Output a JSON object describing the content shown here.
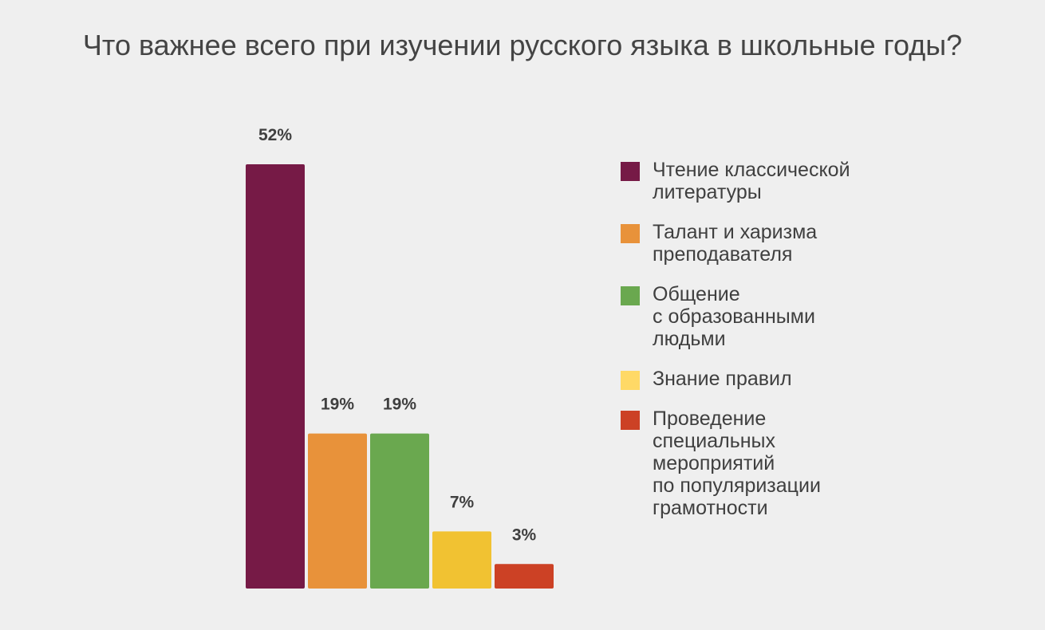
{
  "chart_data": {
    "type": "bar",
    "title": "Что важнее всего при изучении русского языка в школьные годы?",
    "categories": [
      "Чтение классической\nлитературы",
      "Талант и харизма\nпреподавателя",
      "Общение\nс образованными\nлюдьми",
      "Знание правил",
      "Проведение\nспециальных\nмероприятий\nпо популяризации\nграмотности"
    ],
    "values": [
      52,
      19,
      19,
      7,
      3
    ],
    "labels": [
      "52%",
      "19%",
      "19%",
      "7%",
      "3%"
    ],
    "colors": [
      "#761a46",
      "#e8923a",
      "#6aa84f",
      "#f1c232",
      "#cc4125"
    ],
    "legend_colors": [
      "#761a46",
      "#e8923a",
      "#6aa84f",
      "#ffd966",
      "#cc4125"
    ],
    "ylim": [
      0,
      52
    ],
    "grid": false,
    "legend_position": "right"
  }
}
